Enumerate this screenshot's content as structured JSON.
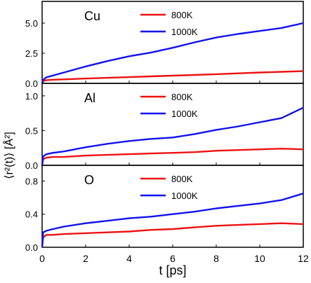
{
  "chart_data": {
    "type": "line",
    "x_axis": {
      "label": "t [ps]",
      "range": [
        0,
        12
      ],
      "ticks": [
        0,
        2,
        4,
        6,
        8,
        10,
        12
      ],
      "tick_labels": [
        "0",
        "2",
        "4",
        "6",
        "8",
        "10",
        "12"
      ]
    },
    "y_label": "⟨r²(t)⟩ [Å²]",
    "grid": false,
    "legend_placement": "top-center",
    "panels": [
      {
        "label": "Cu",
        "ylim": [
          0,
          6.8
        ],
        "y_ticks": [
          0,
          2.5,
          5
        ],
        "y_tick_labels": [
          "0.0",
          "2.5",
          "5.0"
        ],
        "series": [
          {
            "name": "800K",
            "color": "#ee1111",
            "x": [
              0,
              0.05,
              0.2,
              0.5,
              1,
              2,
              3,
              4,
              5,
              6,
              7,
              8,
              9,
              10,
              11,
              12
            ],
            "y": [
              0,
              0.2,
              0.27,
              0.3,
              0.33,
              0.4,
              0.46,
              0.52,
              0.58,
              0.64,
              0.7,
              0.76,
              0.83,
              0.9,
              0.96,
              1.01
            ]
          },
          {
            "name": "1000K",
            "color": "#1111ee",
            "x": [
              0,
              0.05,
              0.2,
              0.5,
              1,
              2,
              3,
              4,
              5,
              6,
              7,
              8,
              9,
              10,
              11,
              12
            ],
            "y": [
              0,
              0.3,
              0.5,
              0.65,
              0.9,
              1.4,
              1.85,
              2.25,
              2.55,
              2.95,
              3.4,
              3.8,
              4.1,
              4.35,
              4.6,
              5.0
            ]
          }
        ]
      },
      {
        "label": "Al",
        "ylim": [
          0,
          1.18
        ],
        "y_ticks": [
          0,
          0.5,
          1.0
        ],
        "y_tick_labels": [
          "0.0",
          "0.5",
          "1.0"
        ],
        "series": [
          {
            "name": "800K",
            "color": "#ee1111",
            "x": [
              0,
              0.05,
              0.2,
              0.5,
              1,
              2,
              3,
              4,
              5,
              6,
              7,
              8,
              9,
              10,
              11,
              12
            ],
            "y": [
              0,
              0.09,
              0.11,
              0.12,
              0.12,
              0.14,
              0.15,
              0.16,
              0.17,
              0.18,
              0.19,
              0.21,
              0.22,
              0.23,
              0.24,
              0.23
            ]
          },
          {
            "name": "1000K",
            "color": "#1111ee",
            "x": [
              0,
              0.05,
              0.2,
              0.5,
              1,
              2,
              3,
              4,
              5,
              6,
              7,
              8,
              9,
              10,
              11,
              12
            ],
            "y": [
              0,
              0.13,
              0.16,
              0.18,
              0.2,
              0.26,
              0.31,
              0.35,
              0.38,
              0.4,
              0.45,
              0.51,
              0.56,
              0.62,
              0.68,
              0.83
            ]
          }
        ]
      },
      {
        "label": "O",
        "ylim": [
          0,
          0.99
        ],
        "y_ticks": [
          0,
          0.4,
          0.8
        ],
        "y_tick_labels": [
          "0.0",
          "0.4",
          "0.8"
        ],
        "series": [
          {
            "name": "800K",
            "color": "#ee1111",
            "x": [
              0,
              0.05,
              0.2,
              0.5,
              1,
              2,
              3,
              4,
              5,
              6,
              7,
              8,
              9,
              10,
              11,
              12
            ],
            "y": [
              0,
              0.12,
              0.15,
              0.15,
              0.16,
              0.17,
              0.18,
              0.19,
              0.21,
              0.22,
              0.24,
              0.26,
              0.27,
              0.28,
              0.29,
              0.28
            ]
          },
          {
            "name": "1000K",
            "color": "#1111ee",
            "x": [
              0,
              0.05,
              0.2,
              0.5,
              1,
              2,
              3,
              4,
              5,
              6,
              7,
              8,
              9,
              10,
              11,
              12
            ],
            "y": [
              0,
              0.18,
              0.2,
              0.22,
              0.25,
              0.29,
              0.32,
              0.35,
              0.37,
              0.4,
              0.43,
              0.47,
              0.5,
              0.53,
              0.57,
              0.65
            ]
          }
        ]
      }
    ]
  }
}
